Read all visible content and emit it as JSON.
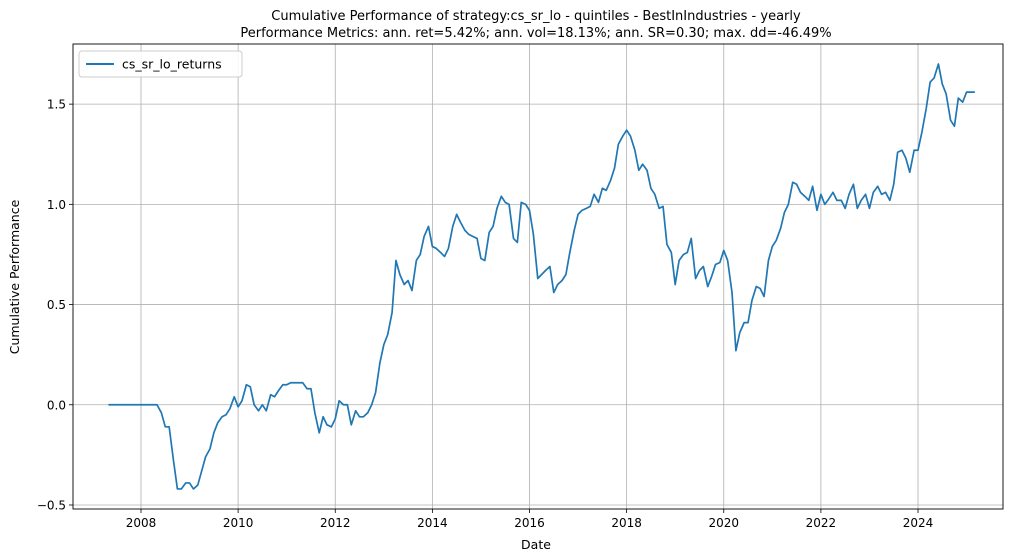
{
  "chart_data": {
    "type": "line",
    "title": "Cumulative Performance of strategy:cs_sr_lo - quintiles - BestInIndustries - yearly",
    "subtitle": "Performance Metrics: ann. ret=5.42%; ann. vol=18.13%; ann. SR=0.30; max. dd=-46.49%",
    "xlabel": "Date",
    "ylabel": "Cumulative Performance",
    "xlim": [
      2006.6,
      2025.75
    ],
    "ylim": [
      -0.52,
      1.8
    ],
    "x_ticks": [
      2008,
      2010,
      2012,
      2014,
      2016,
      2018,
      2020,
      2022,
      2024
    ],
    "x_tick_labels": [
      "2008",
      "2010",
      "2012",
      "2014",
      "2016",
      "2018",
      "2020",
      "2022",
      "2024"
    ],
    "y_ticks": [
      -0.5,
      0.0,
      0.5,
      1.0,
      1.5
    ],
    "y_tick_labels": [
      "−0.5",
      "0.0",
      "0.5",
      "1.0",
      "1.5"
    ],
    "grid": true,
    "legend_position": "top-left",
    "series": [
      {
        "name": "cs_sr_lo_returns",
        "color": "#1f77b4",
        "points": [
          [
            2007.33,
            0.0
          ],
          [
            2008.2,
            0.0
          ],
          [
            2008.25,
            0.0
          ],
          [
            2008.33,
            0.0
          ],
          [
            2008.42,
            -0.04
          ],
          [
            2008.5,
            -0.11
          ],
          [
            2008.58,
            -0.11
          ],
          [
            2008.67,
            -0.28
          ],
          [
            2008.75,
            -0.42
          ],
          [
            2008.83,
            -0.42
          ],
          [
            2008.92,
            -0.39
          ],
          [
            2009.0,
            -0.39
          ],
          [
            2009.08,
            -0.42
          ],
          [
            2009.17,
            -0.4
          ],
          [
            2009.25,
            -0.33
          ],
          [
            2009.33,
            -0.26
          ],
          [
            2009.42,
            -0.22
          ],
          [
            2009.5,
            -0.14
          ],
          [
            2009.58,
            -0.09
          ],
          [
            2009.67,
            -0.06
          ],
          [
            2009.75,
            -0.05
          ],
          [
            2009.83,
            -0.02
          ],
          [
            2009.92,
            0.04
          ],
          [
            2010.0,
            -0.01
          ],
          [
            2010.08,
            0.02
          ],
          [
            2010.17,
            0.1
          ],
          [
            2010.25,
            0.09
          ],
          [
            2010.33,
            0.0
          ],
          [
            2010.42,
            -0.03
          ],
          [
            2010.5,
            0.0
          ],
          [
            2010.58,
            -0.03
          ],
          [
            2010.67,
            0.05
          ],
          [
            2010.75,
            0.04
          ],
          [
            2010.83,
            0.07
          ],
          [
            2010.92,
            0.1
          ],
          [
            2011.0,
            0.1
          ],
          [
            2011.08,
            0.11
          ],
          [
            2011.17,
            0.11
          ],
          [
            2011.25,
            0.11
          ],
          [
            2011.33,
            0.11
          ],
          [
            2011.42,
            0.08
          ],
          [
            2011.5,
            0.08
          ],
          [
            2011.58,
            -0.04
          ],
          [
            2011.67,
            -0.14
          ],
          [
            2011.75,
            -0.06
          ],
          [
            2011.83,
            -0.1
          ],
          [
            2011.92,
            -0.11
          ],
          [
            2012.0,
            -0.07
          ],
          [
            2012.08,
            0.02
          ],
          [
            2012.17,
            0.0
          ],
          [
            2012.25,
            0.0
          ],
          [
            2012.33,
            -0.1
          ],
          [
            2012.42,
            -0.03
          ],
          [
            2012.5,
            -0.06
          ],
          [
            2012.58,
            -0.06
          ],
          [
            2012.67,
            -0.04
          ],
          [
            2012.75,
            0.0
          ],
          [
            2012.83,
            0.06
          ],
          [
            2012.92,
            0.21
          ],
          [
            2013.0,
            0.3
          ],
          [
            2013.08,
            0.35
          ],
          [
            2013.17,
            0.46
          ],
          [
            2013.25,
            0.72
          ],
          [
            2013.33,
            0.65
          ],
          [
            2013.42,
            0.6
          ],
          [
            2013.5,
            0.62
          ],
          [
            2013.58,
            0.57
          ],
          [
            2013.67,
            0.72
          ],
          [
            2013.75,
            0.75
          ],
          [
            2013.83,
            0.84
          ],
          [
            2013.92,
            0.89
          ],
          [
            2014.0,
            0.79
          ],
          [
            2014.08,
            0.78
          ],
          [
            2014.17,
            0.76
          ],
          [
            2014.25,
            0.74
          ],
          [
            2014.33,
            0.78
          ],
          [
            2014.42,
            0.89
          ],
          [
            2014.5,
            0.95
          ],
          [
            2014.58,
            0.91
          ],
          [
            2014.67,
            0.87
          ],
          [
            2014.75,
            0.85
          ],
          [
            2014.83,
            0.84
          ],
          [
            2014.92,
            0.83
          ],
          [
            2015.0,
            0.73
          ],
          [
            2015.08,
            0.72
          ],
          [
            2015.17,
            0.86
          ],
          [
            2015.25,
            0.89
          ],
          [
            2015.33,
            0.98
          ],
          [
            2015.42,
            1.04
          ],
          [
            2015.5,
            1.01
          ],
          [
            2015.58,
            1.0
          ],
          [
            2015.67,
            0.83
          ],
          [
            2015.75,
            0.81
          ],
          [
            2015.83,
            1.01
          ],
          [
            2015.92,
            1.0
          ],
          [
            2016.0,
            0.97
          ],
          [
            2016.08,
            0.85
          ],
          [
            2016.17,
            0.63
          ],
          [
            2016.25,
            0.65
          ],
          [
            2016.33,
            0.67
          ],
          [
            2016.42,
            0.69
          ],
          [
            2016.5,
            0.56
          ],
          [
            2016.58,
            0.6
          ],
          [
            2016.67,
            0.62
          ],
          [
            2016.75,
            0.65
          ],
          [
            2016.83,
            0.76
          ],
          [
            2016.92,
            0.87
          ],
          [
            2017.0,
            0.95
          ],
          [
            2017.08,
            0.97
          ],
          [
            2017.17,
            0.98
          ],
          [
            2017.25,
            0.99
          ],
          [
            2017.33,
            1.05
          ],
          [
            2017.42,
            1.01
          ],
          [
            2017.5,
            1.08
          ],
          [
            2017.58,
            1.07
          ],
          [
            2017.67,
            1.12
          ],
          [
            2017.75,
            1.18
          ],
          [
            2017.83,
            1.3
          ],
          [
            2017.92,
            1.34
          ],
          [
            2018.0,
            1.37
          ],
          [
            2018.08,
            1.34
          ],
          [
            2018.17,
            1.27
          ],
          [
            2018.25,
            1.17
          ],
          [
            2018.33,
            1.2
          ],
          [
            2018.42,
            1.17
          ],
          [
            2018.5,
            1.08
          ],
          [
            2018.58,
            1.05
          ],
          [
            2018.67,
            0.98
          ],
          [
            2018.75,
            0.99
          ],
          [
            2018.83,
            0.8
          ],
          [
            2018.92,
            0.76
          ],
          [
            2019.0,
            0.6
          ],
          [
            2019.08,
            0.72
          ],
          [
            2019.17,
            0.75
          ],
          [
            2019.25,
            0.76
          ],
          [
            2019.33,
            0.83
          ],
          [
            2019.42,
            0.63
          ],
          [
            2019.5,
            0.67
          ],
          [
            2019.58,
            0.69
          ],
          [
            2019.67,
            0.59
          ],
          [
            2019.75,
            0.64
          ],
          [
            2019.83,
            0.7
          ],
          [
            2019.92,
            0.71
          ],
          [
            2020.0,
            0.77
          ],
          [
            2020.08,
            0.72
          ],
          [
            2020.17,
            0.56
          ],
          [
            2020.25,
            0.27
          ],
          [
            2020.33,
            0.36
          ],
          [
            2020.42,
            0.41
          ],
          [
            2020.5,
            0.41
          ],
          [
            2020.58,
            0.52
          ],
          [
            2020.67,
            0.59
          ],
          [
            2020.75,
            0.58
          ],
          [
            2020.83,
            0.54
          ],
          [
            2020.92,
            0.72
          ],
          [
            2021.0,
            0.79
          ],
          [
            2021.08,
            0.82
          ],
          [
            2021.17,
            0.88
          ],
          [
            2021.25,
            0.96
          ],
          [
            2021.33,
            1.0
          ],
          [
            2021.42,
            1.11
          ],
          [
            2021.5,
            1.1
          ],
          [
            2021.58,
            1.06
          ],
          [
            2021.67,
            1.04
          ],
          [
            2021.75,
            1.02
          ],
          [
            2021.83,
            1.09
          ],
          [
            2021.92,
            0.97
          ],
          [
            2022.0,
            1.05
          ],
          [
            2022.08,
            1.0
          ],
          [
            2022.17,
            1.03
          ],
          [
            2022.25,
            1.06
          ],
          [
            2022.33,
            1.02
          ],
          [
            2022.42,
            1.02
          ],
          [
            2022.5,
            0.98
          ],
          [
            2022.58,
            1.05
          ],
          [
            2022.67,
            1.1
          ],
          [
            2022.75,
            0.98
          ],
          [
            2022.83,
            1.02
          ],
          [
            2022.92,
            1.05
          ],
          [
            2023.0,
            0.98
          ],
          [
            2023.08,
            1.06
          ],
          [
            2023.17,
            1.09
          ],
          [
            2023.25,
            1.05
          ],
          [
            2023.33,
            1.06
          ],
          [
            2023.42,
            1.02
          ],
          [
            2023.5,
            1.1
          ],
          [
            2023.58,
            1.26
          ],
          [
            2023.67,
            1.27
          ],
          [
            2023.75,
            1.23
          ],
          [
            2023.83,
            1.16
          ],
          [
            2023.92,
            1.27
          ],
          [
            2024.0,
            1.27
          ],
          [
            2024.08,
            1.36
          ],
          [
            2024.17,
            1.48
          ],
          [
            2024.25,
            1.61
          ],
          [
            2024.33,
            1.63
          ],
          [
            2024.42,
            1.7
          ],
          [
            2024.5,
            1.6
          ],
          [
            2024.58,
            1.55
          ],
          [
            2024.67,
            1.42
          ],
          [
            2024.75,
            1.39
          ],
          [
            2024.83,
            1.53
          ],
          [
            2024.92,
            1.51
          ],
          [
            2025.0,
            1.56
          ],
          [
            2025.08,
            1.56
          ],
          [
            2025.17,
            1.56
          ]
        ]
      }
    ]
  }
}
